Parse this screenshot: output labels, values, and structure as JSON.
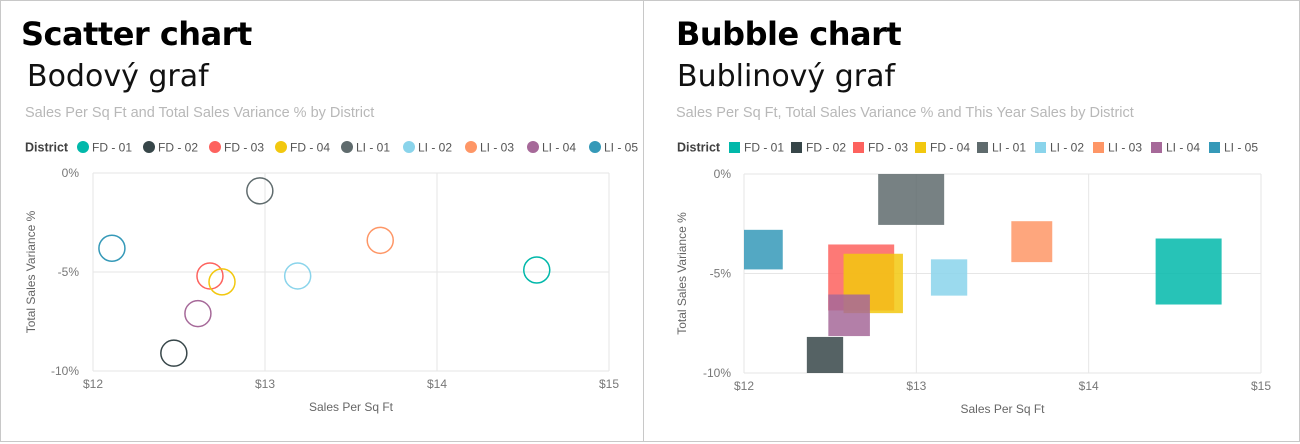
{
  "panels": [
    {
      "title_en": "Scatter chart",
      "title_cs": "Bodový graf",
      "chart_title": "Sales Per Sq Ft and Total Sales Variance % by District"
    },
    {
      "title_en": "Bubble chart",
      "title_cs": "Bublinový graf",
      "chart_title": "Sales Per Sq Ft, Total Sales Variance % and This Year Sales by District"
    }
  ],
  "chart_data": [
    {
      "type": "scatter",
      "title": "Sales Per Sq Ft and Total Sales Variance % by District",
      "xlabel": "Sales Per Sq Ft",
      "ylabel": "Total Sales Variance %",
      "xlim": [
        12,
        15
      ],
      "ylim": [
        -10,
        0
      ],
      "x_ticks": [
        "$12",
        "$13",
        "$14",
        "$15"
      ],
      "y_ticks": [
        "0%",
        "-5%",
        "-10%"
      ],
      "grid": true,
      "legend_title": "District",
      "legend_position": "top-left",
      "marker": "hollow-circle",
      "series": [
        {
          "name": "FD - 01",
          "color": "#01B8AA",
          "x": 14.58,
          "y": -4.9
        },
        {
          "name": "FD - 02",
          "color": "#374649",
          "x": 12.47,
          "y": -9.1
        },
        {
          "name": "FD - 03",
          "color": "#FD625E",
          "x": 12.68,
          "y": -5.2
        },
        {
          "name": "FD - 04",
          "color": "#F2C80F",
          "x": 12.75,
          "y": -5.5
        },
        {
          "name": "LI - 01",
          "color": "#5F6B6D",
          "x": 12.97,
          "y": -0.9
        },
        {
          "name": "LI - 02",
          "color": "#8AD4EB",
          "x": 13.19,
          "y": -5.2
        },
        {
          "name": "LI - 03",
          "color": "#FE9666",
          "x": 13.67,
          "y": -3.4
        },
        {
          "name": "LI - 04",
          "color": "#A66999",
          "x": 12.61,
          "y": -7.1
        },
        {
          "name": "LI - 05",
          "color": "#3599B8",
          "x": 12.11,
          "y": -3.8
        }
      ]
    },
    {
      "type": "scatter",
      "title": "Sales Per Sq Ft, Total Sales Variance % and This Year Sales by District",
      "xlabel": "Sales Per Sq Ft",
      "ylabel": "Total Sales Variance %",
      "xlim": [
        12,
        15
      ],
      "ylim": [
        -10,
        0
      ],
      "x_ticks": [
        "$12",
        "$13",
        "$14",
        "$15"
      ],
      "y_ticks": [
        "0%",
        "-5%",
        "-10%"
      ],
      "grid": true,
      "legend_title": "District",
      "legend_position": "top-left",
      "marker": "filled-square",
      "series": [
        {
          "name": "FD - 01",
          "color": "#01B8AA",
          "x": 14.58,
          "y": -4.9,
          "size": 1.0
        },
        {
          "name": "FD - 02",
          "color": "#374649",
          "x": 12.47,
          "y": -9.1,
          "size": 0.55
        },
        {
          "name": "FD - 03",
          "color": "#FD625E",
          "x": 12.68,
          "y": -5.2,
          "size": 1.0
        },
        {
          "name": "FD - 04",
          "color": "#F2C80F",
          "x": 12.75,
          "y": -5.5,
          "size": 0.9
        },
        {
          "name": "LI - 01",
          "color": "#5F6B6D",
          "x": 12.97,
          "y": -0.9,
          "size": 1.0
        },
        {
          "name": "LI - 02",
          "color": "#8AD4EB",
          "x": 13.19,
          "y": -5.2,
          "size": 0.55
        },
        {
          "name": "LI - 03",
          "color": "#FE9666",
          "x": 13.67,
          "y": -3.4,
          "size": 0.62
        },
        {
          "name": "LI - 04",
          "color": "#A66999",
          "x": 12.61,
          "y": -7.1,
          "size": 0.63
        },
        {
          "name": "LI - 05",
          "color": "#3599B8",
          "x": 12.11,
          "y": -3.8,
          "size": 0.6
        }
      ]
    }
  ]
}
